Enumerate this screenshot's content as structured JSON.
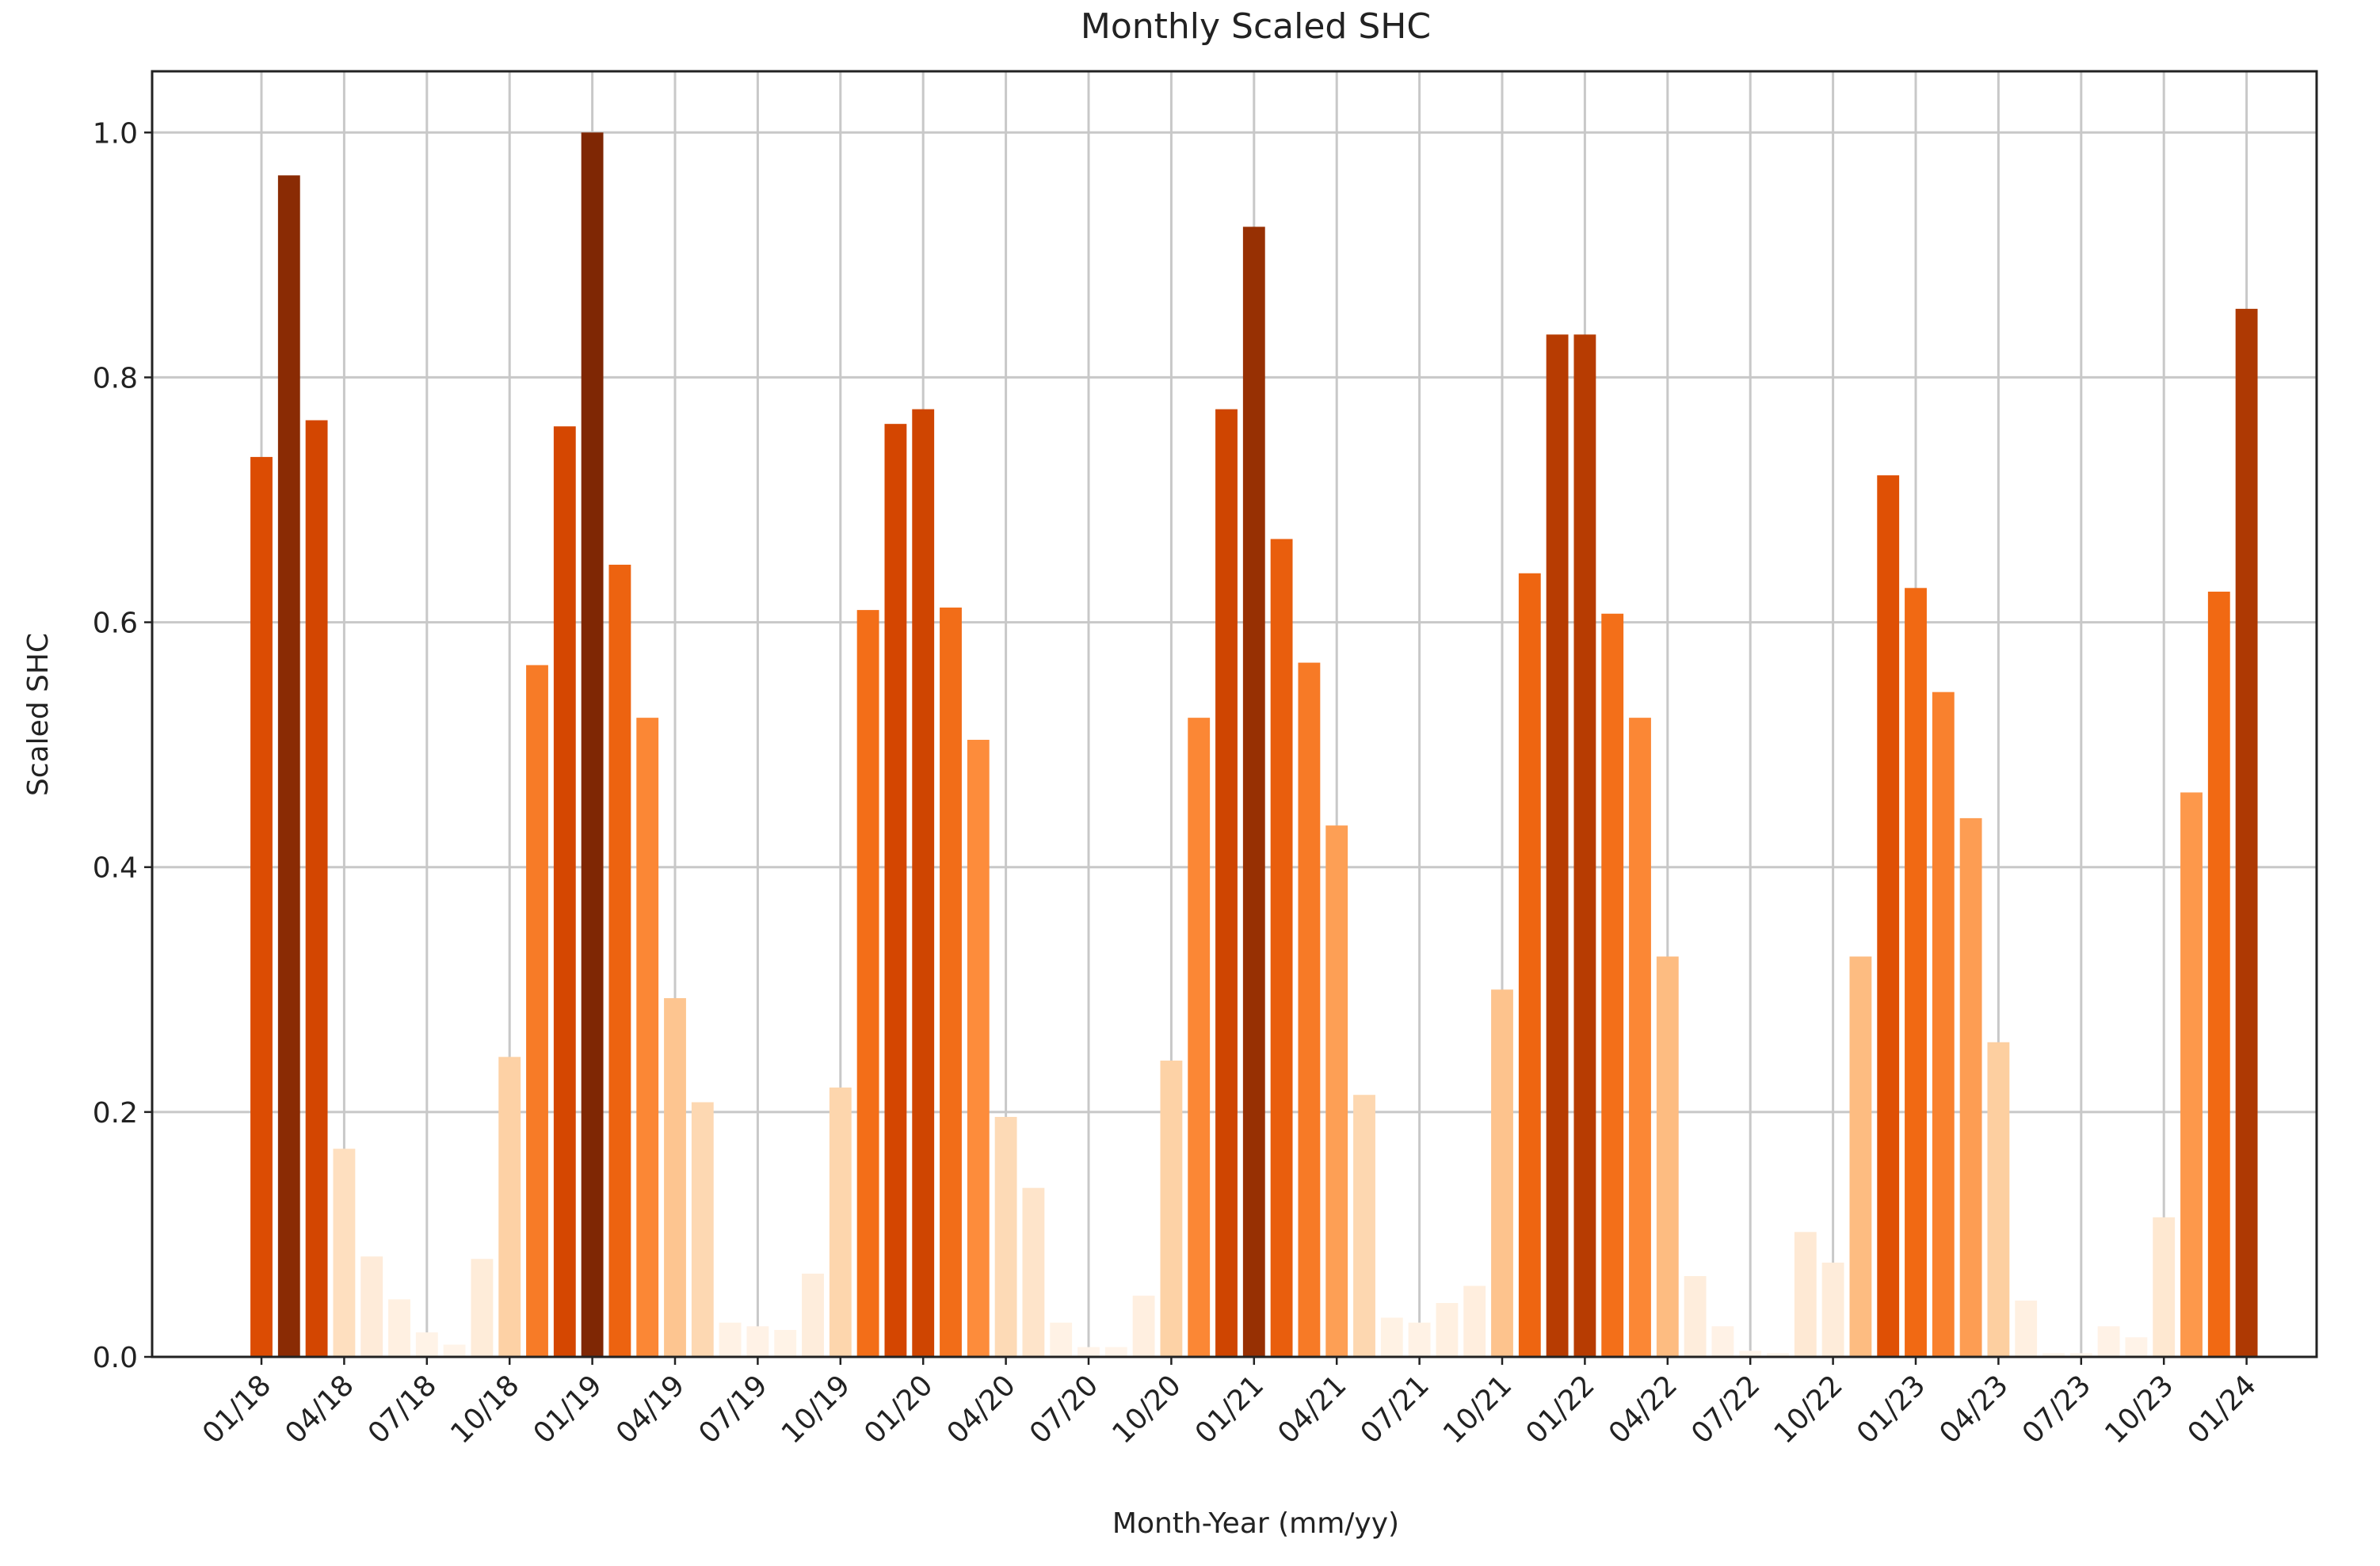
{
  "chart_data": {
    "type": "bar",
    "title": "Monthly Scaled SHC",
    "x_label": "Month-Year (mm/yy)",
    "y_label": "Scaled SHC",
    "categories": [
      "01/18",
      null,
      null,
      "04/18",
      null,
      null,
      "07/18",
      null,
      null,
      "10/18",
      null,
      null,
      "01/19",
      null,
      null,
      "04/19",
      null,
      null,
      "07/19",
      null,
      null,
      "10/19",
      null,
      null,
      "01/20",
      null,
      null,
      "04/20",
      null,
      null,
      "07/20",
      null,
      null,
      "10/20",
      null,
      null,
      "01/21",
      null,
      null,
      "04/21",
      null,
      null,
      "07/21",
      null,
      null,
      "10/21",
      null,
      null,
      "01/22",
      null,
      null,
      "04/22",
      null,
      null,
      "07/22",
      null,
      null,
      "10/22",
      null,
      null,
      "01/23",
      null,
      null,
      "04/23",
      null,
      null,
      "07/23",
      null,
      null,
      "10/23",
      null,
      null,
      "01/24"
    ],
    "values": [
      0.735,
      0.965,
      0.765,
      0.17,
      0.082,
      0.047,
      0.02,
      0.01,
      0.08,
      0.245,
      0.565,
      0.76,
      1.0,
      0.647,
      0.522,
      0.293,
      0.208,
      0.028,
      0.025,
      0.022,
      0.068,
      0.22,
      0.61,
      0.762,
      0.774,
      0.612,
      0.504,
      0.196,
      0.138,
      0.028,
      0.008,
      0.008,
      0.05,
      0.242,
      0.522,
      0.774,
      0.923,
      0.668,
      0.567,
      0.434,
      0.214,
      0.032,
      0.028,
      0.044,
      0.058,
      0.3,
      0.64,
      0.835,
      0.835,
      0.607,
      0.522,
      0.327,
      0.066,
      0.025,
      0.005,
      0.003,
      0.102,
      0.077,
      0.327,
      0.72,
      0.628,
      0.543,
      0.44,
      0.257,
      0.046,
      0.003,
      0.003,
      0.025,
      0.016,
      0.114,
      0.461,
      0.625,
      0.856
    ],
    "colormap": "Oranges",
    "ylim": [
      0,
      1.05
    ],
    "yticks": [
      {
        "value": 0,
        "label": "0.0"
      },
      0.2,
      0.4,
      0.6,
      0.8,
      {
        "value": 1,
        "label": "1.0"
      }
    ],
    "grid": true
  }
}
